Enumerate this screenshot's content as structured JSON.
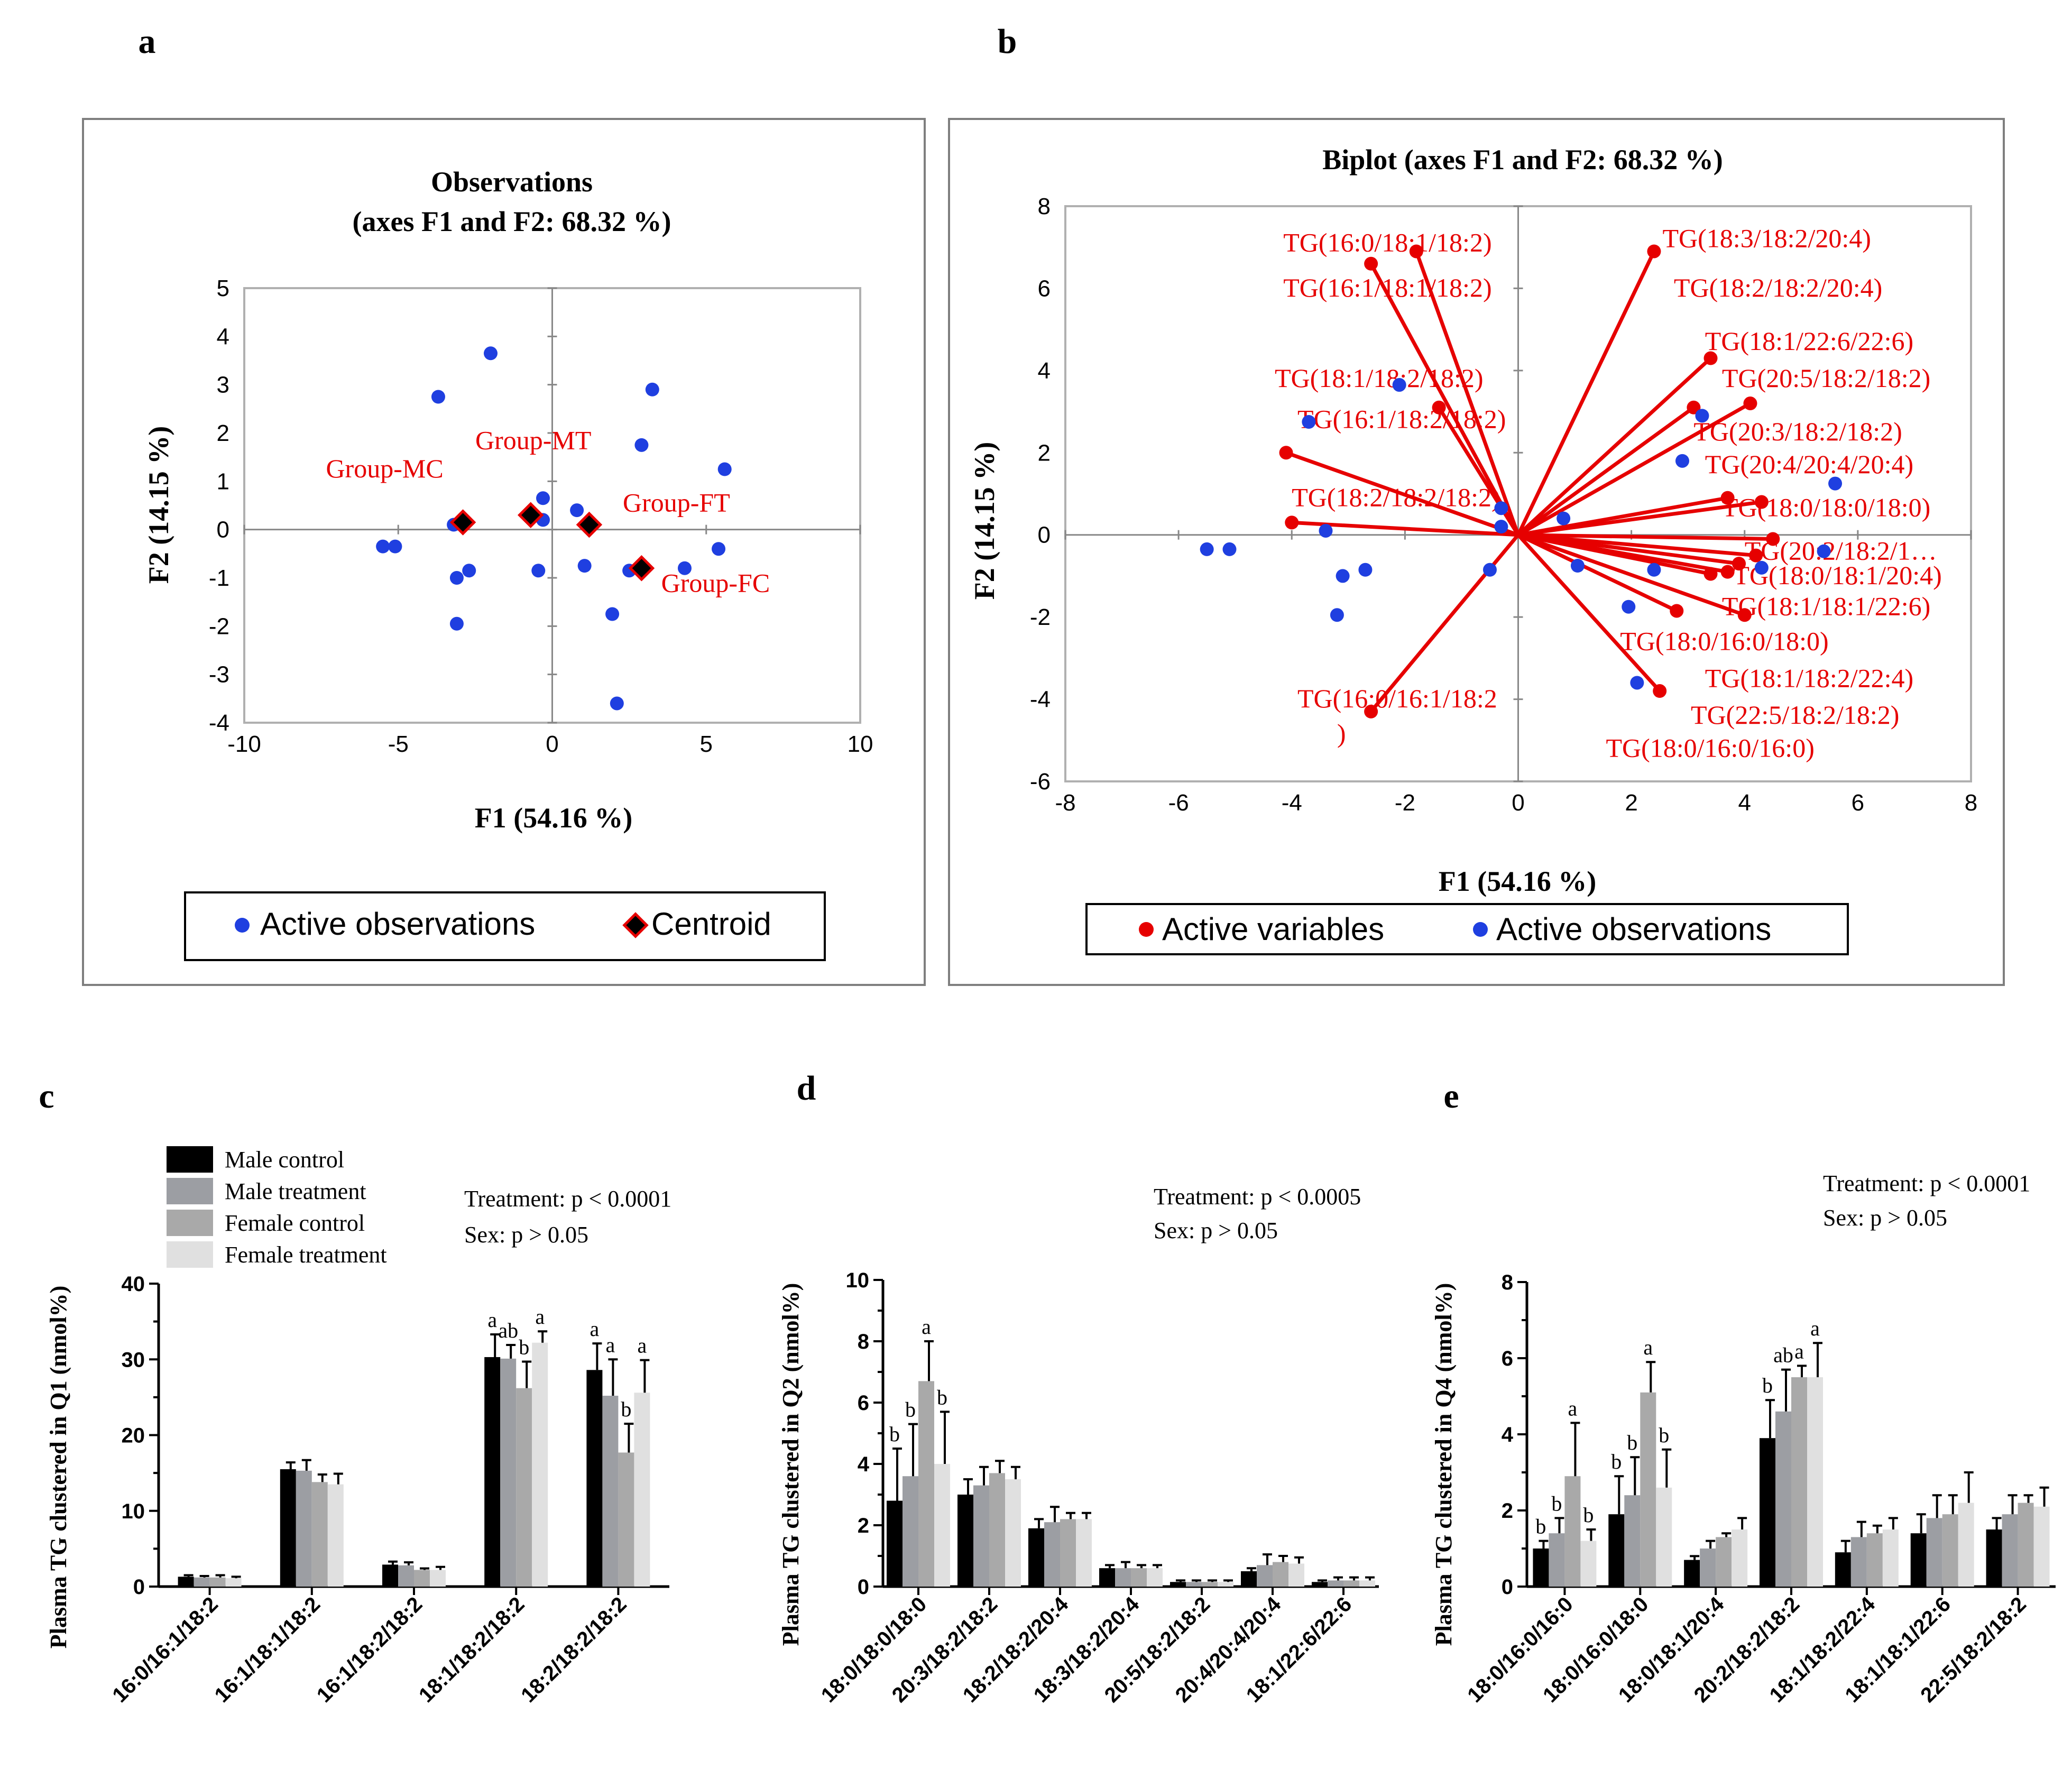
{
  "figure": {
    "panel_letters": [
      "a",
      "b",
      "c",
      "d",
      "e"
    ],
    "bar_legend": [
      "Male control",
      "Male treatment",
      "Female control",
      "Female treatment"
    ],
    "colors": {
      "observation": "#1f3fe0",
      "variable": "#e60000",
      "bars": [
        "#000000",
        "#9c9ea3",
        "#a9a9a9",
        "#e0e0e0"
      ],
      "frame": "#7f7f7f",
      "plot_border": "#b0b0b0"
    }
  },
  "chart_data": [
    {
      "id": "a",
      "type": "scatter",
      "title": "Observations",
      "subtitle": "(axes F1 and F2: 68.32 %)",
      "xlabel": "F1 (54.16 %)",
      "ylabel": "F2 (14.15 %)",
      "xlim": [
        -10,
        10
      ],
      "ylim": [
        -4,
        5
      ],
      "xticks": [
        -10,
        -5,
        0,
        5,
        10
      ],
      "yticks": [
        -4,
        -3,
        -2,
        -1,
        0,
        1,
        2,
        3,
        4,
        5
      ],
      "legend": [
        "Active observations",
        "Centroid"
      ],
      "observations": [
        [
          -2.0,
          3.65
        ],
        [
          -3.7,
          2.75
        ],
        [
          3.25,
          2.9
        ],
        [
          2.9,
          1.75
        ],
        [
          5.6,
          1.25
        ],
        [
          -0.3,
          0.65
        ],
        [
          0.8,
          0.4
        ],
        [
          -3.2,
          0.1
        ],
        [
          -0.3,
          0.2
        ],
        [
          -5.5,
          -0.35
        ],
        [
          -5.1,
          -0.35
        ],
        [
          -2.7,
          -0.85
        ],
        [
          -3.1,
          -1.0
        ],
        [
          -0.45,
          -0.85
        ],
        [
          1.05,
          -0.75
        ],
        [
          2.5,
          -0.85
        ],
        [
          4.3,
          -0.8
        ],
        [
          5.4,
          -0.4
        ],
        [
          -3.1,
          -1.95
        ],
        [
          1.95,
          -1.75
        ],
        [
          2.1,
          -3.6
        ]
      ],
      "centroids": [
        {
          "label": "Group-MC",
          "x": -2.9,
          "y": 0.15
        },
        {
          "label": "Group-MT",
          "x": -0.7,
          "y": 0.3
        },
        {
          "label": "Group-FT",
          "x": 1.2,
          "y": 0.1
        },
        {
          "label": "Group-FC",
          "x": 2.9,
          "y": -0.8
        }
      ]
    },
    {
      "id": "b",
      "type": "scatter",
      "title": "Biplot (axes F1 and F2: 68.32 %)",
      "xlabel": "F1 (54.16 %)",
      "ylabel": "F2 (14.15 %)",
      "xlim": [
        -8,
        8
      ],
      "ylim": [
        -6,
        8
      ],
      "xticks": [
        -8,
        -6,
        -4,
        -2,
        0,
        2,
        4,
        6,
        8
      ],
      "yticks": [
        -6,
        -4,
        -2,
        0,
        2,
        4,
        6,
        8
      ],
      "legend": [
        "Active variables",
        "Active observations"
      ],
      "observations": [
        [
          -2.1,
          3.65
        ],
        [
          -3.7,
          2.75
        ],
        [
          3.25,
          2.9
        ],
        [
          2.9,
          1.8
        ],
        [
          5.6,
          1.25
        ],
        [
          -0.3,
          0.65
        ],
        [
          0.8,
          0.4
        ],
        [
          -3.4,
          0.1
        ],
        [
          -0.3,
          0.2
        ],
        [
          -5.5,
          -0.35
        ],
        [
          -5.1,
          -0.35
        ],
        [
          -2.7,
          -0.85
        ],
        [
          -3.1,
          -1.0
        ],
        [
          -0.5,
          -0.85
        ],
        [
          1.05,
          -0.75
        ],
        [
          2.4,
          -0.85
        ],
        [
          4.3,
          -0.8
        ],
        [
          5.4,
          -0.4
        ],
        [
          -3.2,
          -1.95
        ],
        [
          1.95,
          -1.75
        ],
        [
          2.1,
          -3.6
        ]
      ],
      "variables": [
        {
          "label": "TG(16:0/18:1/18:2)",
          "x": -2.6,
          "y": 6.6
        },
        {
          "label": "TG(16:1/18:1/18:2)",
          "x": -1.8,
          "y": 6.9
        },
        {
          "label": "TG(18:1/18:2/18:2)",
          "x": -1.4,
          "y": 3.1
        },
        {
          "label": "TG(16:1/18:2/18:2)",
          "x": -4.1,
          "y": 2.0
        },
        {
          "label": "TG(18:2/18:2/18:2)",
          "x": -4.0,
          "y": 0.3
        },
        {
          "label": "TG(16:0/16:1/18:2",
          "x": -2.6,
          "y": -4.3
        },
        {
          "label": "TG(18:3/18:2/20:4)",
          "x": 2.4,
          "y": 6.9
        },
        {
          "label": "TG(18:2/18:2/20:4)",
          "x": 3.4,
          "y": 4.3
        },
        {
          "label": "TG(18:1/22:6/22:6)",
          "x": 3.1,
          "y": 3.1
        },
        {
          "label": "TG(20:5/18:2/18:2)",
          "x": 4.1,
          "y": 3.2
        },
        {
          "label": "TG(20:3/18:2/18:2)",
          "x": 3.7,
          "y": 0.9
        },
        {
          "label": "TG(20:4/20:4/20:4)",
          "x": 4.3,
          "y": 0.8
        },
        {
          "label": "TG(18:0/18:0/18:0)",
          "x": 4.5,
          "y": -0.1
        },
        {
          "label": "TG(20:2/18:2/1…",
          "x": 4.2,
          "y": -0.5
        },
        {
          "label": "TG(18:0/18:1/20:4)",
          "x": 3.7,
          "y": -0.9
        },
        {
          "label": "TG(18:1/18:1/22:6)",
          "x": 4.0,
          "y": -1.95
        },
        {
          "label": "TG(18:0/16:0/18:0)",
          "x": 2.8,
          "y": -1.85
        },
        {
          "label": "TG(18:1/18:2/22:4)",
          "x": 3.9,
          "y": -0.7
        },
        {
          "label": "TG(22:5/18:2/18:2)",
          "x": 3.4,
          "y": -0.95
        },
        {
          "label": "TG(18:0/16:0/16:0)",
          "x": 2.5,
          "y": -3.8
        }
      ],
      "label_positions": [
        [
          -4.15,
          6.9
        ],
        [
          -4.15,
          5.8
        ],
        [
          -4.3,
          3.6
        ],
        [
          -3.9,
          2.6
        ],
        [
          -4.0,
          0.7
        ],
        [
          -3.9,
          -4.2
        ],
        [
          2.55,
          7.0
        ],
        [
          2.75,
          5.8
        ],
        [
          3.3,
          4.5
        ],
        [
          3.6,
          3.6
        ],
        [
          3.1,
          2.3
        ],
        [
          3.3,
          1.5
        ],
        [
          3.6,
          0.45
        ],
        [
          4.0,
          -0.6
        ],
        [
          3.8,
          -1.2
        ],
        [
          3.6,
          -1.95
        ],
        [
          1.8,
          -2.8
        ],
        [
          3.3,
          -3.7
        ],
        [
          3.05,
          -4.6
        ],
        [
          1.55,
          -5.4
        ]
      ],
      "extra_label": ")",
      "extra_label_position": [
        -3.2,
        -5.05
      ]
    },
    {
      "id": "c",
      "type": "bar",
      "ylabel": "Plasma TG clustered in Q1 (nmol%)",
      "ylim": [
        0,
        40
      ],
      "yticks": [
        0,
        10,
        20,
        30,
        40
      ],
      "annotations": [
        "Treatment: p < 0.0001",
        "Sex: p > 0.05"
      ],
      "categories": [
        "16:0/16:1/18:2",
        "16:1/18:1/18:2",
        "16:1/18:2/18:2",
        "18:1/18:2/18:2",
        "18:2/18:2/18:2"
      ],
      "series": [
        {
          "name": "Male control",
          "values": [
            1.3,
            15.5,
            2.9,
            30.3,
            28.6
          ],
          "errors": [
            0.2,
            0.9,
            0.4,
            3.0,
            3.5
          ]
        },
        {
          "name": "Male treatment",
          "values": [
            1.2,
            15.3,
            2.8,
            30.1,
            25.2
          ],
          "errors": [
            0.2,
            1.4,
            0.4,
            1.8,
            4.8
          ]
        },
        {
          "name": "Female control",
          "values": [
            1.2,
            13.8,
            2.2,
            26.2,
            17.7
          ],
          "errors": [
            0.3,
            1.0,
            0.2,
            3.5,
            3.8
          ]
        },
        {
          "name": "Female treatment",
          "values": [
            1.1,
            13.5,
            2.2,
            32.2,
            25.6
          ],
          "errors": [
            0.2,
            1.4,
            0.4,
            1.5,
            4.3
          ]
        }
      ],
      "letters": [
        [
          "",
          "",
          "",
          "a",
          "a"
        ],
        [
          "",
          "",
          "",
          "ab",
          "a"
        ],
        [
          "",
          "",
          "",
          "b",
          "b"
        ],
        [
          "",
          "",
          "",
          "a",
          "a"
        ]
      ]
    },
    {
      "id": "d",
      "type": "bar",
      "ylabel": "Plasma TG clustered in Q2 (nmol%)",
      "ylim": [
        0,
        10
      ],
      "yticks": [
        0,
        2,
        4,
        6,
        8,
        10
      ],
      "annotations": [
        "Treatment: p < 0.0005",
        "Sex: p > 0.05"
      ],
      "categories": [
        "18:0/18:0/18:0",
        "20:3/18:2/18:2",
        "18:2/18:2/20:4",
        "18:3/18:2/20:4",
        "20:5/18:2/18:2",
        "20:4/20:4/20:4",
        "18:1/22:6/22:6"
      ],
      "series": [
        {
          "name": "Male control",
          "values": [
            2.8,
            3.0,
            1.9,
            0.6,
            0.15,
            0.5,
            0.15
          ],
          "errors": [
            1.7,
            0.5,
            0.3,
            0.1,
            0.05,
            0.1,
            0.05
          ]
        },
        {
          "name": "Male treatment",
          "values": [
            3.6,
            3.3,
            2.1,
            0.6,
            0.15,
            0.7,
            0.2
          ],
          "errors": [
            1.7,
            0.6,
            0.5,
            0.2,
            0.05,
            0.35,
            0.1
          ]
        },
        {
          "name": "Female control",
          "values": [
            6.7,
            3.7,
            2.2,
            0.6,
            0.15,
            0.8,
            0.2
          ],
          "errors": [
            1.3,
            0.4,
            0.2,
            0.1,
            0.05,
            0.2,
            0.1
          ]
        },
        {
          "name": "Female treatment",
          "values": [
            4.0,
            3.5,
            2.2,
            0.6,
            0.15,
            0.75,
            0.2
          ],
          "errors": [
            1.7,
            0.4,
            0.2,
            0.1,
            0.05,
            0.2,
            0.1
          ]
        }
      ],
      "letters": [
        [
          "b",
          "",
          "",
          "",
          "",
          "",
          ""
        ],
        [
          "b",
          "",
          "",
          "",
          "",
          "",
          ""
        ],
        [
          "a",
          "",
          "",
          "",
          "",
          "",
          ""
        ],
        [
          "b",
          "",
          "",
          "",
          "",
          "",
          ""
        ]
      ]
    },
    {
      "id": "e",
      "type": "bar",
      "ylabel": "Plasma TG clustered in Q4 (nmol%)",
      "ylim": [
        0,
        8
      ],
      "yticks": [
        0,
        2,
        4,
        6,
        8
      ],
      "annotations": [
        "Treatment: p < 0.0001",
        "Sex: p > 0.05"
      ],
      "categories": [
        "18:0/16:0/16:0",
        "18:0/16:0/18:0",
        "18:0/18:1/20:4",
        "20:2/18:2/18:2",
        "18:1/18:2/22:4",
        "18:1/18:1/22:6",
        "22:5/18:2/18:2"
      ],
      "series": [
        {
          "name": "Male control",
          "values": [
            1.0,
            1.9,
            0.7,
            3.9,
            0.9,
            1.4,
            1.5
          ],
          "errors": [
            0.2,
            1.0,
            0.1,
            1.0,
            0.3,
            0.5,
            0.3
          ]
        },
        {
          "name": "Male treatment",
          "values": [
            1.4,
            2.4,
            1.0,
            4.6,
            1.3,
            1.8,
            1.9
          ],
          "errors": [
            0.4,
            1.0,
            0.2,
            1.1,
            0.4,
            0.6,
            0.5
          ]
        },
        {
          "name": "Female control",
          "values": [
            2.9,
            5.1,
            1.3,
            5.5,
            1.4,
            1.9,
            2.2
          ],
          "errors": [
            1.4,
            0.8,
            0.1,
            0.3,
            0.2,
            0.5,
            0.2
          ]
        },
        {
          "name": "Female treatment",
          "values": [
            1.2,
            2.6,
            1.5,
            5.5,
            1.5,
            2.2,
            2.1
          ],
          "errors": [
            0.3,
            1.0,
            0.3,
            0.9,
            0.3,
            0.8,
            0.5
          ]
        }
      ],
      "letters": [
        [
          "b",
          "b",
          "",
          "b",
          "",
          "",
          ""
        ],
        [
          "b",
          "b",
          "",
          "ab",
          "",
          "",
          ""
        ],
        [
          "a",
          "a",
          "",
          "a",
          "",
          "",
          ""
        ],
        [
          "b",
          "b",
          "",
          "a",
          "",
          "",
          ""
        ]
      ]
    }
  ]
}
